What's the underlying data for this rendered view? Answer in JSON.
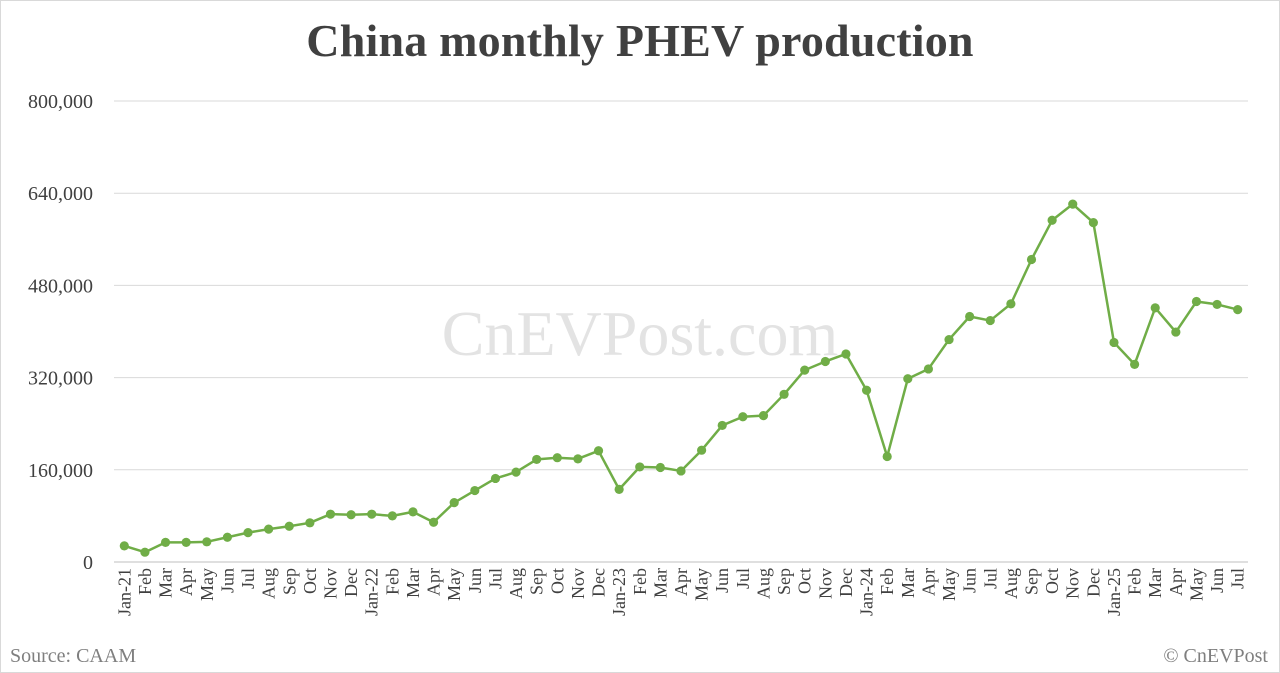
{
  "chart_data": {
    "type": "line",
    "title": "China monthly PHEV production",
    "xlabel": "",
    "ylabel": "",
    "ylim": [
      0,
      800000
    ],
    "yticks": [
      "0",
      "160,000",
      "320,000",
      "480,000",
      "640,000",
      "800,000"
    ],
    "grid": "horizontal",
    "legend": "none",
    "series_color": "#70ad47",
    "categories": [
      "Jan-21",
      "Feb",
      "Mar",
      "Apr",
      "May",
      "Jun",
      "Jul",
      "Aug",
      "Sep",
      "Oct",
      "Nov",
      "Dec",
      "Jan-22",
      "Feb",
      "Mar",
      "Apr",
      "May",
      "Jun",
      "Jul",
      "Aug",
      "Sep",
      "Oct",
      "Nov",
      "Dec",
      "Jan-23",
      "Feb",
      "Mar",
      "Apr",
      "May",
      "Jun",
      "Jul",
      "Aug",
      "Sep",
      "Oct",
      "Nov",
      "Dec",
      "Jan-24",
      "Feb",
      "Mar",
      "Apr",
      "May",
      "Jun",
      "Jul",
      "Aug",
      "Sep",
      "Oct",
      "Nov",
      "Dec",
      "Jan-25",
      "Feb",
      "Mar",
      "Apr",
      "May",
      "Jun",
      "Jul"
    ],
    "series": [
      {
        "values": [
          28000,
          17000,
          34000,
          34000,
          35000,
          43000,
          51000,
          57000,
          62000,
          68000,
          83000,
          82000,
          83000,
          80000,
          87000,
          69000,
          103000,
          124000,
          145000,
          156000,
          178000,
          181000,
          179000,
          193000,
          126000,
          165000,
          164000,
          158000,
          194000,
          237000,
          252000,
          254000,
          291000,
          333000,
          348000,
          361000,
          298000,
          183000,
          318000,
          335000,
          386000,
          426000,
          419000,
          448000,
          525000,
          593000,
          621000,
          589000,
          381000,
          343000,
          441000,
          399000,
          452000,
          447000,
          438000
        ]
      }
    ]
  },
  "watermark": "CnEVPost.com",
  "footer": {
    "source": "Source: CAAM",
    "copyright": "© CnEVPost"
  }
}
